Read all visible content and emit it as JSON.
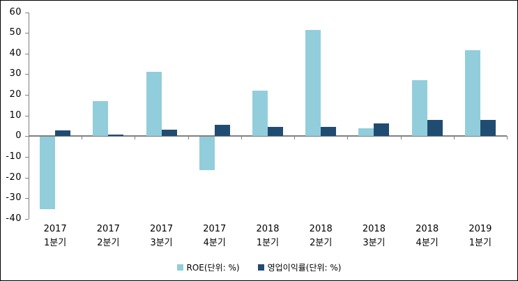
{
  "chart_data": {
    "type": "bar",
    "title": "",
    "xlabel": "",
    "ylabel": "",
    "categories": [
      "2017 1분기",
      "2017 2분기",
      "2017 3분기",
      "2017 4분기",
      "2018 1분기",
      "2018 2분기",
      "2018 3분기",
      "2018 4분기",
      "2019 1분기"
    ],
    "category_lines": [
      [
        "2017",
        "1분기"
      ],
      [
        "2017",
        "2분기"
      ],
      [
        "2017",
        "3분기"
      ],
      [
        "2017",
        "4분기"
      ],
      [
        "2018",
        "1분기"
      ],
      [
        "2018",
        "2분기"
      ],
      [
        "2018",
        "3분기"
      ],
      [
        "2018",
        "4분기"
      ],
      [
        "2019",
        "1분기"
      ]
    ],
    "series": [
      {
        "name": "ROE(단위: %)",
        "color": "#92CDDC",
        "values": [
          -35,
          17,
          31,
          -16,
          22,
          51.5,
          4,
          27,
          41.5
        ]
      },
      {
        "name": "영업이익률(단위: %)",
        "color": "#214C72",
        "values": [
          2.8,
          0.8,
          3.2,
          5.5,
          4.4,
          4.6,
          6.2,
          7.9,
          7.9
        ]
      }
    ],
    "ylim": [
      -40,
      60
    ],
    "ytick_step": 10,
    "ytick_labels": [
      "60",
      "50",
      "40",
      "30",
      "20",
      "10",
      "0",
      "-10",
      "-20",
      "-30",
      "-40"
    ],
    "grid": false,
    "legend_position": "bottom",
    "axis_color": "#7F7F7F",
    "text_color": "#000000",
    "background_color": "#FFFFFF"
  }
}
